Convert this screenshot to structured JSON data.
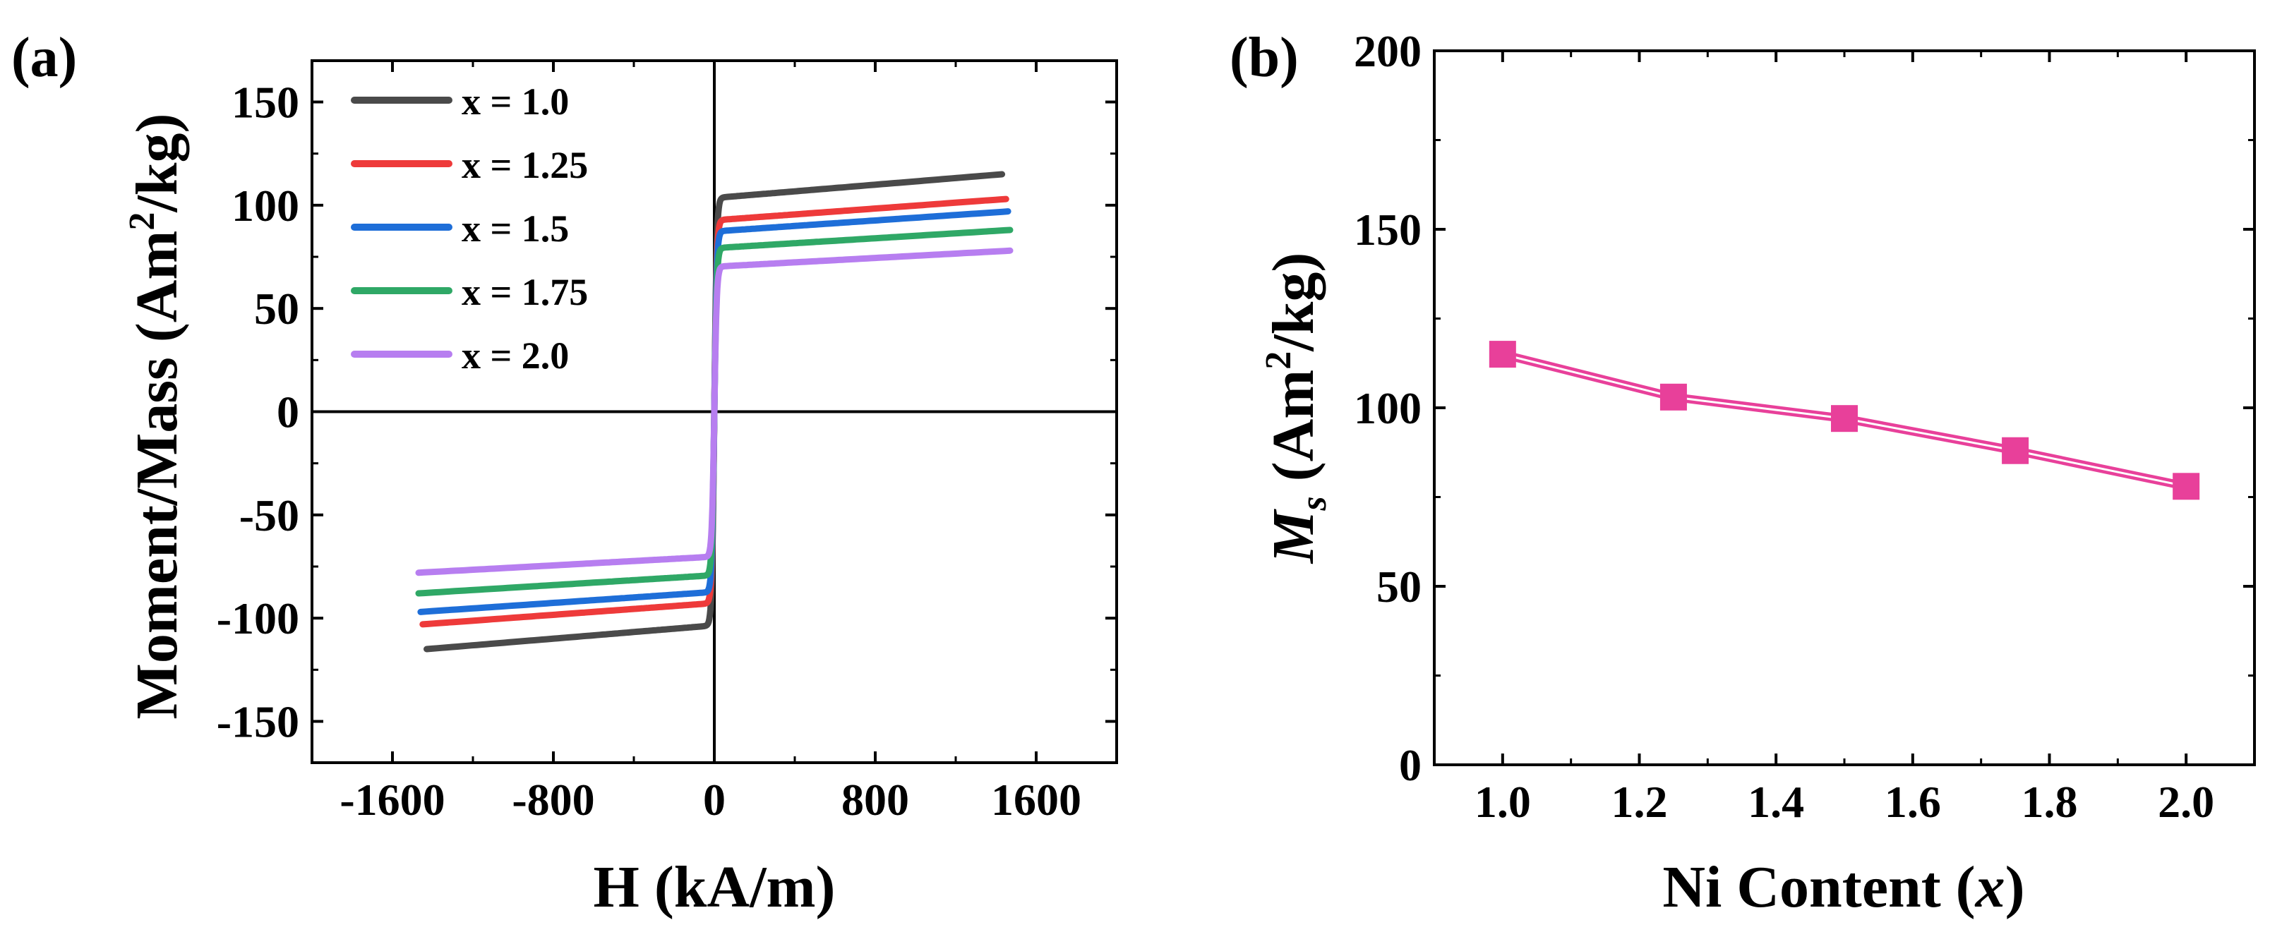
{
  "chart_data": [
    {
      "panel_label": "(a)",
      "type": "line",
      "xlabel": "H (kA/m)",
      "ylabel_main": "Moment/Mass (Am",
      "ylabel_sup": "2",
      "ylabel_end": "/kg)",
      "xlim": [
        -2000,
        2000
      ],
      "ylim": [
        -170,
        170
      ],
      "xticks": [
        -1600,
        -800,
        0,
        800,
        1600
      ],
      "yticks": [
        -150,
        -100,
        -50,
        0,
        50,
        100,
        150
      ],
      "xtick_labels": [
        "-1600",
        "-800",
        "0",
        "800",
        "1600"
      ],
      "ytick_labels": [
        "-150",
        "-100",
        "-50",
        "0",
        "50",
        "100",
        "150"
      ],
      "legend_position": "top-left",
      "series": [
        {
          "name": "x = 1.0",
          "color": "#4a4a4a",
          "ms": 115,
          "h_max": 1430
        },
        {
          "name": "x = 1.25",
          "color": "#ee3a3a",
          "ms": 103,
          "h_max": 1450
        },
        {
          "name": "x = 1.5",
          "color": "#1e6ed8",
          "ms": 97,
          "h_max": 1460
        },
        {
          "name": "x = 1.75",
          "color": "#2fa866",
          "ms": 88,
          "h_max": 1470
        },
        {
          "name": "x = 2.0",
          "color": "#b77ef0",
          "ms": 78,
          "h_max": 1470
        }
      ]
    },
    {
      "panel_label": "(b)",
      "type": "line",
      "xlabel_main": "Ni Content (",
      "xlabel_var": "x",
      "xlabel_end": ")",
      "ylabel_var": "M",
      "ylabel_sub": "s",
      "ylabel_main": " (Am",
      "ylabel_sup": "2",
      "ylabel_end": "/kg)",
      "xlim": [
        0.9,
        2.1
      ],
      "ylim": [
        0,
        200
      ],
      "xticks": [
        1.0,
        1.2,
        1.4,
        1.6,
        1.8,
        2.0
      ],
      "yticks": [
        0,
        50,
        100,
        150,
        200
      ],
      "xtick_labels": [
        "1.0",
        "1.2",
        "1.4",
        "1.6",
        "1.8",
        "2.0"
      ],
      "ytick_labels": [
        "0",
        "50",
        "100",
        "150",
        "200"
      ],
      "color": "#e8409a",
      "x": [
        1.0,
        1.25,
        1.5,
        1.75,
        2.0
      ],
      "y": [
        115,
        103,
        97,
        88,
        78
      ]
    }
  ]
}
